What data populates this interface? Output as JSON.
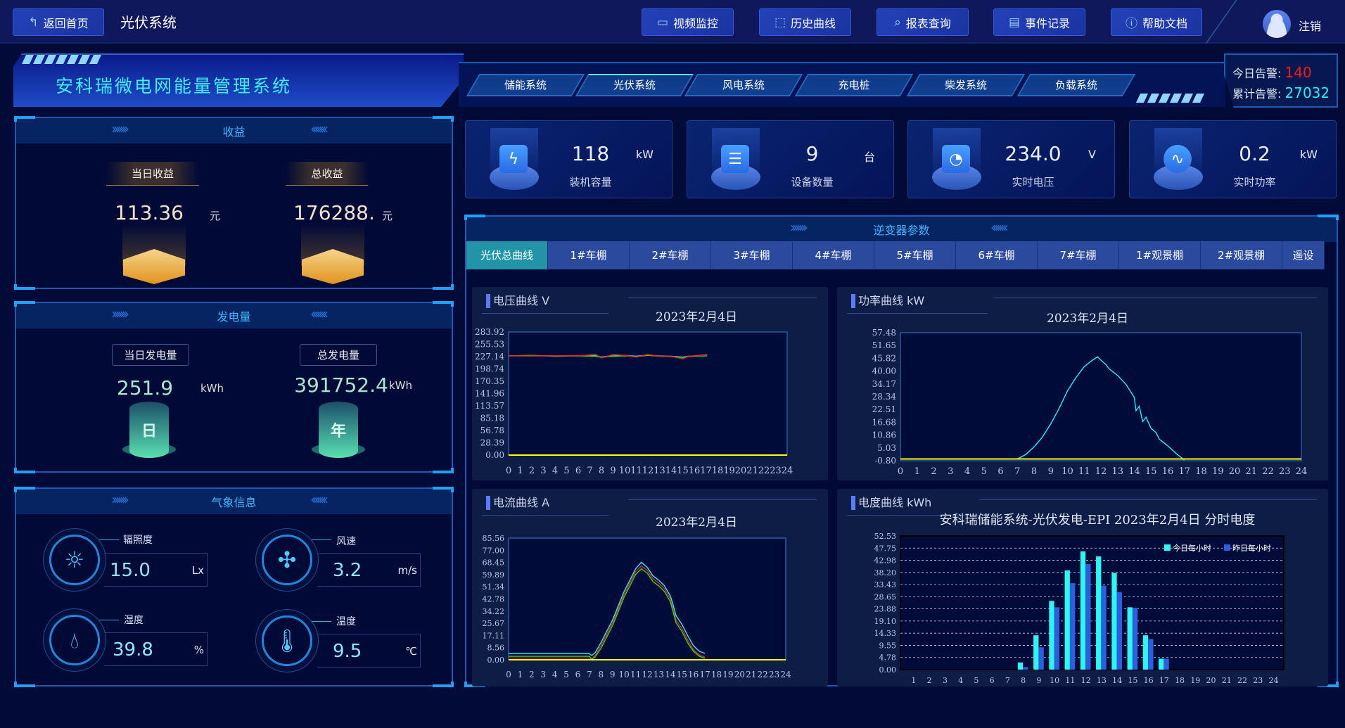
{
  "topbar": {
    "back_label": "返回首页",
    "page_title": "光伏系统",
    "nav": [
      {
        "label": "视频监控",
        "icon": "video-icon"
      },
      {
        "label": "历史曲线",
        "icon": "chart-icon"
      },
      {
        "label": "报表查询",
        "icon": "search-report-icon"
      },
      {
        "label": "事件记录",
        "icon": "document-icon"
      },
      {
        "label": "帮助文档",
        "icon": "help-icon"
      }
    ],
    "logout_label": "注销"
  },
  "header": {
    "system_title": "安科瑞微电网能量管理系统",
    "tabs": [
      "储能系统",
      "光伏系统",
      "风电系统",
      "充电桩",
      "柴发系统",
      "负载系统"
    ],
    "active_tab": "光伏系统",
    "alarm_today_label": "今日告警:",
    "alarm_today_value": "140",
    "alarm_total_label": "累计告警:",
    "alarm_total_value": "27032",
    "alarm_today_color": "#ff1a1a",
    "alarm_total_color": "#1ef2ff"
  },
  "income": {
    "title": "收益",
    "today_label": "当日收益",
    "today_value": "113.36",
    "today_unit": "元",
    "total_label": "总收益",
    "total_value": "176288.",
    "total_unit": "元"
  },
  "generation": {
    "title": "发电量",
    "today_label": "当日发电量",
    "today_value": "251.9",
    "today_unit": "kWh",
    "today_icon_text": "日",
    "total_label": "总发电量",
    "total_value": "391752.4",
    "total_unit": "kWh",
    "total_icon_text": "年"
  },
  "weather": {
    "title": "气象信息",
    "items": [
      {
        "label": "辐照度",
        "value": "15.0",
        "unit": "Lx",
        "icon": "sun-icon"
      },
      {
        "label": "风速",
        "value": "3.2",
        "unit": "m/s",
        "icon": "fan-icon"
      },
      {
        "label": "湿度",
        "value": "39.8",
        "unit": "%",
        "icon": "humidity-icon"
      },
      {
        "label": "温度",
        "value": "9.5",
        "unit": "℃",
        "icon": "thermometer-icon"
      }
    ]
  },
  "stats": [
    {
      "value": "118",
      "unit": "kW",
      "label": "装机容量",
      "icon": "battery-icon"
    },
    {
      "value": "9",
      "unit": "台",
      "label": "设备数量",
      "icon": "device-icon"
    },
    {
      "value": "234.0",
      "unit": "V",
      "label": "实时电压",
      "icon": "voltmeter-icon"
    },
    {
      "value": "0.2",
      "unit": "kW",
      "label": "实时功率",
      "icon": "pulse-icon"
    }
  ],
  "inverter": {
    "title": "逆变器参数",
    "tabs": [
      "光伏总曲线",
      "1#车棚",
      "2#车棚",
      "3#车棚",
      "4#车棚",
      "5#车棚",
      "6#车棚",
      "7#车棚",
      "1#观景棚",
      "2#观景棚",
      "遥设"
    ],
    "active_tab": "光伏总曲线"
  },
  "chart_data": [
    {
      "id": "voltage",
      "type": "line",
      "panel_title": "电压曲线  V",
      "title": "2023年2月4日",
      "xlim": [
        0,
        24
      ],
      "ylim": [
        0,
        283.92
      ],
      "yticks": [
        "283.92",
        "255.53",
        "227.14",
        "198.74",
        "170.35",
        "141.96",
        "113.57",
        "85.18",
        "56.78",
        "28.39",
        "0.00"
      ],
      "xticks": [
        "0",
        "1",
        "2",
        "3",
        "4",
        "5",
        "6",
        "7",
        "8",
        "9",
        "10",
        "11",
        "12",
        "13",
        "14",
        "15",
        "16",
        "17",
        "18",
        "19",
        "20",
        "21",
        "22",
        "23",
        "24"
      ],
      "series": [
        {
          "color": "#1ef2ff",
          "x": [
            0,
            2,
            4,
            6,
            7.5,
            8,
            8.5,
            9,
            10,
            11,
            12,
            13,
            14,
            15,
            15.5,
            16,
            17.1
          ],
          "y": [
            229,
            229,
            229,
            229,
            230,
            226,
            228,
            229,
            230,
            228,
            231,
            229,
            228,
            226,
            228,
            229,
            231
          ]
        },
        {
          "color": "#22dd22",
          "x": [
            0,
            2,
            4,
            6,
            7.5,
            8,
            8.5,
            9,
            10,
            11,
            12,
            13,
            14,
            15,
            15.5,
            16,
            17.1
          ],
          "y": [
            229,
            230,
            228,
            229,
            228,
            225,
            227,
            228,
            229,
            227,
            230,
            228,
            227,
            225,
            227,
            228,
            229
          ]
        },
        {
          "color": "#ff1a1a",
          "x": [
            0,
            2,
            4,
            6,
            7.5,
            8,
            8.5,
            9,
            10,
            11,
            12,
            13,
            14,
            15,
            15.5,
            16,
            17.1
          ],
          "y": [
            229,
            229,
            229,
            229,
            232,
            224,
            228,
            232,
            230,
            226,
            232,
            228,
            228,
            222,
            228,
            229,
            230
          ]
        },
        {
          "color": "#ffff00",
          "x": [
            0,
            24
          ],
          "y": [
            0,
            0
          ]
        }
      ]
    },
    {
      "id": "power",
      "type": "line",
      "panel_title": "功率曲线  kW",
      "title": "2023年2月4日",
      "xlim": [
        0,
        24
      ],
      "ylim": [
        -0.8,
        57.48
      ],
      "yticks": [
        "57.48",
        "51.65",
        "45.82",
        "40.00",
        "34.17",
        "28.34",
        "22.51",
        "16.68",
        "10.86",
        "5.03",
        "-0.80"
      ],
      "xticks": [
        "0",
        "1",
        "2",
        "3",
        "4",
        "5",
        "6",
        "7",
        "8",
        "9",
        "10",
        "11",
        "12",
        "13",
        "14",
        "15",
        "16",
        "17",
        "18",
        "19",
        "20",
        "21",
        "22",
        "23",
        "24"
      ],
      "series": [
        {
          "color": "#1ef2ff",
          "x": [
            0,
            7,
            7.5,
            8,
            8.5,
            9,
            9.5,
            10,
            10.5,
            11,
            11.5,
            11.8,
            12,
            12.3,
            12.5,
            13,
            13.5,
            14,
            14.1,
            14.3,
            14.5,
            14.7,
            15,
            15.3,
            15.5,
            16,
            16.5,
            17
          ],
          "y": [
            0,
            0,
            2,
            5.5,
            10,
            16,
            23,
            31,
            37,
            42,
            45,
            46.5,
            45,
            43,
            41,
            38,
            34,
            28,
            22,
            24,
            17,
            19,
            14,
            12,
            9,
            6,
            2.5,
            -0.5
          ]
        },
        {
          "color": "#ffff00",
          "x": [
            0,
            24
          ],
          "y": [
            0,
            0
          ]
        }
      ]
    },
    {
      "id": "current",
      "type": "line",
      "panel_title": "电流曲线  A",
      "title": "2023年2月4日",
      "xlim": [
        0,
        24
      ],
      "ylim": [
        0,
        85.56
      ],
      "yticks": [
        "85.56",
        "77.00",
        "68.45",
        "59.89",
        "51.34",
        "42.78",
        "34.22",
        "25.67",
        "17.11",
        "8.56",
        "0.00"
      ],
      "xticks": [
        "0",
        "1",
        "2",
        "3",
        "4",
        "5",
        "6",
        "7",
        "8",
        "9",
        "10",
        "11",
        "12",
        "13",
        "14",
        "15",
        "16",
        "17",
        "18",
        "19",
        "20",
        "21",
        "22",
        "23",
        "24"
      ],
      "series": [
        {
          "color": "#1ef2ff",
          "x": [
            0,
            7,
            7.2,
            7.5,
            8,
            9,
            10,
            10.5,
            11,
            11.5,
            12,
            12.5,
            13,
            13.5,
            14,
            14.2,
            14.5,
            15,
            15.5,
            16,
            16.5,
            17
          ],
          "y": [
            4.3,
            4.3,
            3,
            5,
            12,
            28,
            48,
            56,
            64,
            68.5,
            65,
            59,
            56,
            52,
            45,
            40,
            31,
            25,
            17,
            10,
            6,
            4.5
          ]
        },
        {
          "color": "#ff1a1a",
          "x": [
            0,
            7,
            7.2,
            7.5,
            8,
            9,
            10,
            10.5,
            11,
            11.5,
            12,
            12.5,
            13,
            13.5,
            14,
            14.2,
            14.5,
            15,
            15.5,
            16,
            16.5,
            17
          ],
          "y": [
            1.3,
            1.3,
            0.5,
            3,
            10,
            26,
            46,
            54,
            62,
            66,
            63,
            57,
            54,
            50,
            43,
            37,
            28,
            22,
            14,
            7,
            3.5,
            1.8
          ]
        },
        {
          "color": "#22dd22",
          "x": [
            0,
            7,
            7.2,
            7.5,
            8,
            9,
            10,
            10.5,
            11,
            11.5,
            12,
            12.5,
            13,
            13.5,
            14,
            14.2,
            14.5,
            15,
            15.5,
            16,
            16.5,
            17
          ],
          "y": [
            2.4,
            2.4,
            0.3,
            2,
            8,
            24,
            44,
            52,
            60,
            64,
            61,
            55,
            52,
            48,
            41,
            35,
            26,
            20,
            12,
            6,
            2.5,
            1
          ]
        },
        {
          "color": "#ffff00",
          "x": [
            0,
            24
          ],
          "y": [
            0,
            0
          ]
        }
      ]
    },
    {
      "id": "energy",
      "type": "bar",
      "panel_title": "电度曲线  kWh",
      "title": "安科瑞储能系统-光伏发电-EPI 2023年2月4日  分时电度",
      "ylim": [
        0,
        52.53
      ],
      "yticks": [
        "52.53",
        "47.75",
        "42.98",
        "38.20",
        "33.43",
        "28.65",
        "23.88",
        "19.10",
        "14.33",
        "9.55",
        "4.78",
        "0.00"
      ],
      "categories": [
        "1",
        "2",
        "3",
        "4",
        "5",
        "6",
        "7",
        "8",
        "9",
        "10",
        "11",
        "12",
        "13",
        "14",
        "15",
        "16",
        "17",
        "18",
        "19",
        "20",
        "21",
        "22",
        "23",
        "24"
      ],
      "grid": true,
      "legend": "top-right",
      "series": [
        {
          "name": "今日每小时",
          "color": "#2ef5f0",
          "values": [
            0,
            0,
            0,
            0,
            0,
            0,
            0,
            2.8,
            13.5,
            27,
            39,
            46.5,
            44.5,
            38,
            24.5,
            13.5,
            4.3,
            0,
            0,
            0,
            0,
            0,
            0,
            0
          ]
        },
        {
          "name": "昨日每小时",
          "color": "#2a5fe0",
          "values": [
            0,
            0,
            0,
            0,
            0,
            0,
            0,
            1,
            8.8,
            24.5,
            34,
            41.5,
            33,
            30.5,
            24.3,
            12,
            4.3,
            0,
            0,
            0,
            0,
            0,
            0,
            0
          ]
        }
      ]
    }
  ]
}
